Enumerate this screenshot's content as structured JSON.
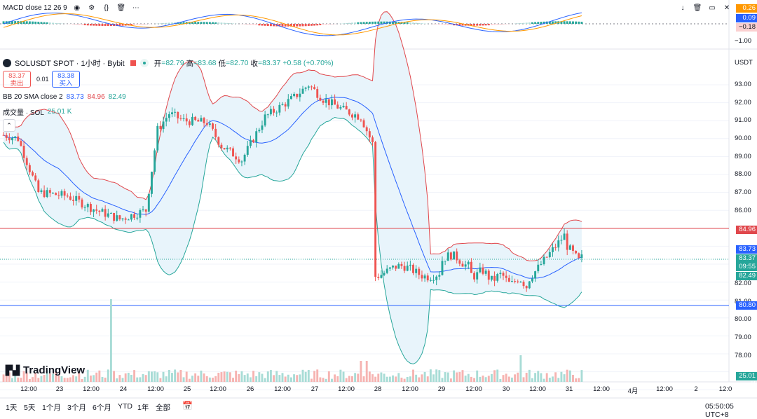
{
  "colors": {
    "up": "#26a69a",
    "down": "#ef5350",
    "bb_upper": "#e0474c",
    "bb_basis": "#2962ff",
    "bb_lower": "#26a69a",
    "bb_fill": "#e8f4fb",
    "macd": "#2962ff",
    "signal": "#ff9800",
    "hline_red": "#e0474c",
    "hline_blue": "#2962ff"
  },
  "macd": {
    "label": "MACD",
    "params": "close 12 26 9",
    "axis": [
      "0.26",
      "0.09",
      "−0.18",
      "−1.00"
    ]
  },
  "symbol": {
    "title": "SOLUSDT SPOT · 1小时 · Bybit",
    "ohlc": {
      "open_label": "开",
      "open": "=82.79",
      "high_label": "高",
      "high": "=83.68",
      "low_label": "低",
      "low": "=82.70",
      "close_label": "收",
      "close": "=83.37",
      "change": "+0.58 (+0.70%)"
    }
  },
  "trade": {
    "sell_price": "83.37",
    "sell_label": "卖出",
    "spread": "0.01",
    "buy_price": "83.38",
    "buy_label": "买入"
  },
  "bb": {
    "label": "BB 20 SMA close 2",
    "basis": "83.73",
    "upper": "84.96",
    "lower": "82.49"
  },
  "volume": {
    "label": "成交量 · SOL",
    "value": "25.01 K"
  },
  "price_axis": {
    "currency": "USDT",
    "ticks": [
      "93.00",
      "92.00",
      "91.00",
      "90.00",
      "89.00",
      "88.00",
      "87.00",
      "86.00",
      "82.00",
      "81.00",
      "80.00",
      "79.00",
      "78.00"
    ]
  },
  "price_tags": {
    "upper": "84.96",
    "basis": "83.73",
    "last": "83.37",
    "countdown": "09:55",
    "lower": "82.49",
    "hline": "80.80",
    "volume": "25.01 K"
  },
  "x_axis": [
    "12:00",
    "23",
    "12:00",
    "24",
    "12:00",
    "25",
    "12:00",
    "26",
    "12:00",
    "27",
    "12:00",
    "28",
    "12:00",
    "29",
    "12:00",
    "30",
    "12:00",
    "31",
    "12:00",
    "4月",
    "12:00",
    "2",
    "12:0"
  ],
  "timeframes": [
    "1天",
    "5天",
    "1个月",
    "3个月",
    "6个月",
    "YTD",
    "1年",
    "全部"
  ],
  "clock": "05:50:05 UTC+8",
  "logo": "TradingView",
  "icons": [
    "eye-icon",
    "settings-icon",
    "code-icon",
    "trash-icon",
    "more-icon",
    "arrow-down-icon",
    "delete-icon",
    "maximize-icon",
    "close-icon",
    "calendar-icon"
  ]
}
